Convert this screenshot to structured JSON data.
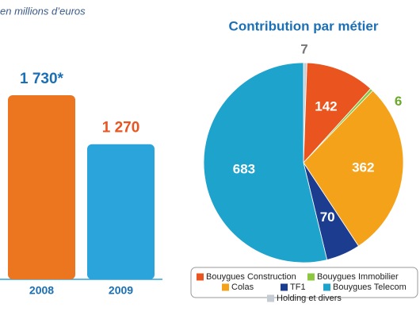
{
  "chart_data": [
    {
      "type": "bar",
      "subtitle": "en millions d’euros",
      "categories": [
        "2008",
        "2009"
      ],
      "values": [
        1730,
        1270
      ],
      "value_labels": [
        "1 730*",
        "1 270"
      ],
      "colors": [
        "#ec7520",
        "#2ba4dc"
      ]
    },
    {
      "type": "pie",
      "title": "Contribution par métier",
      "categories": [
        "Holding et divers",
        "Bouygues Construction",
        "Bouygues Immobilier",
        "Colas",
        "TF1",
        "Bouygues Telecom"
      ],
      "values": [
        7,
        142,
        6,
        362,
        70,
        683
      ],
      "colors": [
        "#c5ccd3",
        "#e9541f",
        "#8dc63f",
        "#f5a21b",
        "#1c3d8f",
        "#1ea3cc"
      ]
    }
  ]
}
